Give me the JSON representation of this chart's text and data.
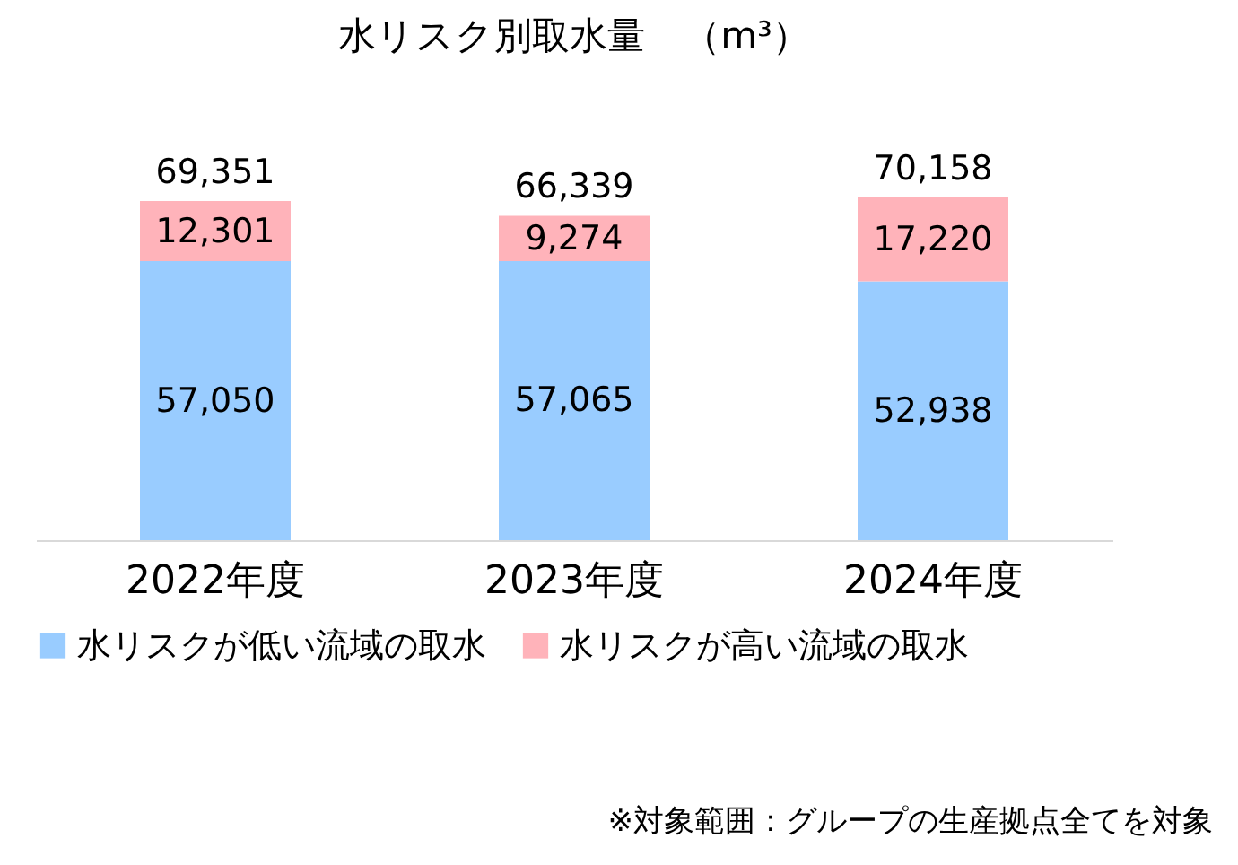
{
  "chart_data": {
    "type": "bar",
    "title": "水リスク別取水量　（m³）",
    "categories": [
      "2022年度",
      "2023年度",
      "2024年度"
    ],
    "stacked": true,
    "series": [
      {
        "name": "水リスクが低い流域の取水",
        "color": "#99ccff",
        "values": [
          57050,
          57065,
          52938
        ],
        "value_labels": [
          "57,050",
          "57,065",
          "52,938"
        ]
      },
      {
        "name": "水リスクが高い流域の取水",
        "color": "#ffb3ba",
        "values": [
          12301,
          9274,
          17220
        ],
        "value_labels": [
          "12,301",
          "9,274",
          "17,220"
        ]
      }
    ],
    "totals": [
      "69,351",
      "66,339",
      "70,158"
    ],
    "legend": "bottom",
    "grid": false,
    "annotations": [
      "※対象範囲：グループの生産拠点全てを対象"
    ]
  }
}
